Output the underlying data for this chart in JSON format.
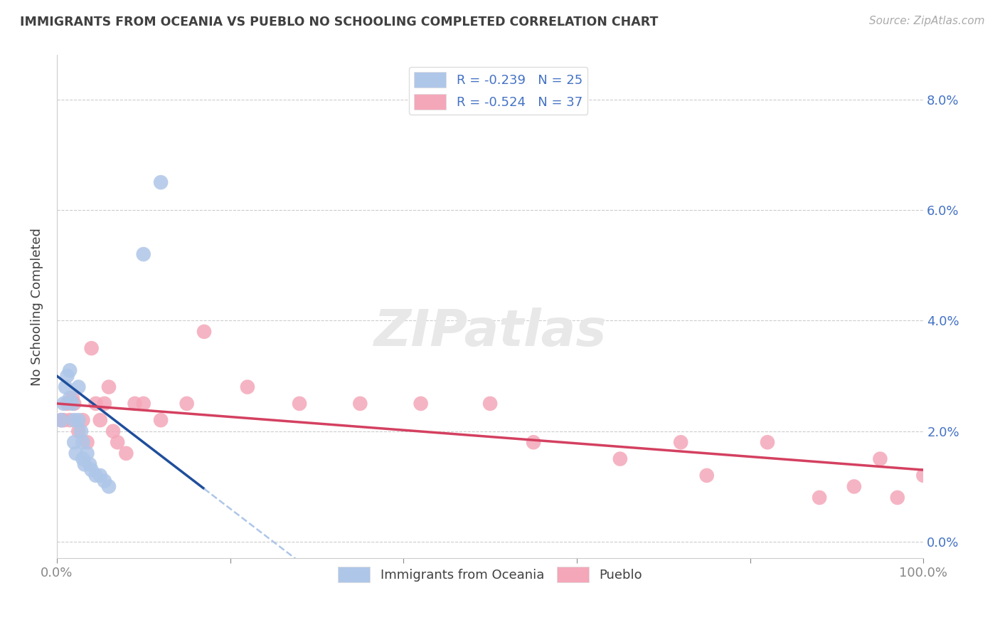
{
  "title": "IMMIGRANTS FROM OCEANIA VS PUEBLO NO SCHOOLING COMPLETED CORRELATION CHART",
  "source": "Source: ZipAtlas.com",
  "ylabel": "No Schooling Completed",
  "legend_entries": [
    {
      "label": "R = -0.239   N = 25",
      "color": "#aec6e8"
    },
    {
      "label": "R = -0.524   N = 37",
      "color": "#f4a7b9"
    }
  ],
  "legend_label_bottom": [
    "Immigrants from Oceania",
    "Pueblo"
  ],
  "xmin": 0.0,
  "xmax": 1.0,
  "ymin": -0.003,
  "ymax": 0.088,
  "yticks": [
    0.0,
    0.02,
    0.04,
    0.06,
    0.08
  ],
  "ytick_labels_right": [
    "0.0%",
    "2.0%",
    "4.0%",
    "6.0%",
    "8.0%"
  ],
  "xticks": [
    0.0,
    0.2,
    0.4,
    0.6,
    0.8,
    1.0
  ],
  "xtick_labels": [
    "0.0%",
    "",
    "",
    "",
    "",
    "100.0%"
  ],
  "blue_scatter_x": [
    0.005,
    0.008,
    0.01,
    0.012,
    0.015,
    0.015,
    0.018,
    0.02,
    0.02,
    0.022,
    0.025,
    0.025,
    0.028,
    0.03,
    0.03,
    0.032,
    0.035,
    0.038,
    0.04,
    0.045,
    0.05,
    0.055,
    0.06,
    0.1,
    0.12
  ],
  "blue_scatter_y": [
    0.022,
    0.025,
    0.028,
    0.03,
    0.031,
    0.026,
    0.025,
    0.022,
    0.018,
    0.016,
    0.028,
    0.022,
    0.02,
    0.018,
    0.015,
    0.014,
    0.016,
    0.014,
    0.013,
    0.012,
    0.012,
    0.011,
    0.01,
    0.052,
    0.065
  ],
  "pink_scatter_x": [
    0.005,
    0.008,
    0.012,
    0.015,
    0.018,
    0.02,
    0.025,
    0.03,
    0.035,
    0.04,
    0.045,
    0.05,
    0.055,
    0.06,
    0.065,
    0.07,
    0.08,
    0.09,
    0.1,
    0.12,
    0.15,
    0.17,
    0.22,
    0.28,
    0.35,
    0.42,
    0.5,
    0.55,
    0.65,
    0.72,
    0.75,
    0.82,
    0.88,
    0.92,
    0.95,
    0.97,
    1.0
  ],
  "pink_scatter_y": [
    0.022,
    0.022,
    0.025,
    0.022,
    0.026,
    0.025,
    0.02,
    0.022,
    0.018,
    0.035,
    0.025,
    0.022,
    0.025,
    0.028,
    0.02,
    0.018,
    0.016,
    0.025,
    0.025,
    0.022,
    0.025,
    0.038,
    0.028,
    0.025,
    0.025,
    0.025,
    0.025,
    0.018,
    0.015,
    0.018,
    0.012,
    0.018,
    0.008,
    0.01,
    0.015,
    0.008,
    0.012
  ],
  "blue_line_color": "#1f4e9c",
  "pink_line_color": "#d44060",
  "blue_dash_color": "#aec6e8",
  "scatter_blue_color": "#aec6e8",
  "scatter_pink_color": "#f4a7b9",
  "background_color": "#ffffff",
  "grid_color": "#cccccc",
  "title_color": "#404040",
  "source_color": "#aaaaaa",
  "axis_color": "#888888",
  "right_axis_color": "#4472c4",
  "watermark_text": "ZIPatlas",
  "watermark_color": "#e8e8e8"
}
